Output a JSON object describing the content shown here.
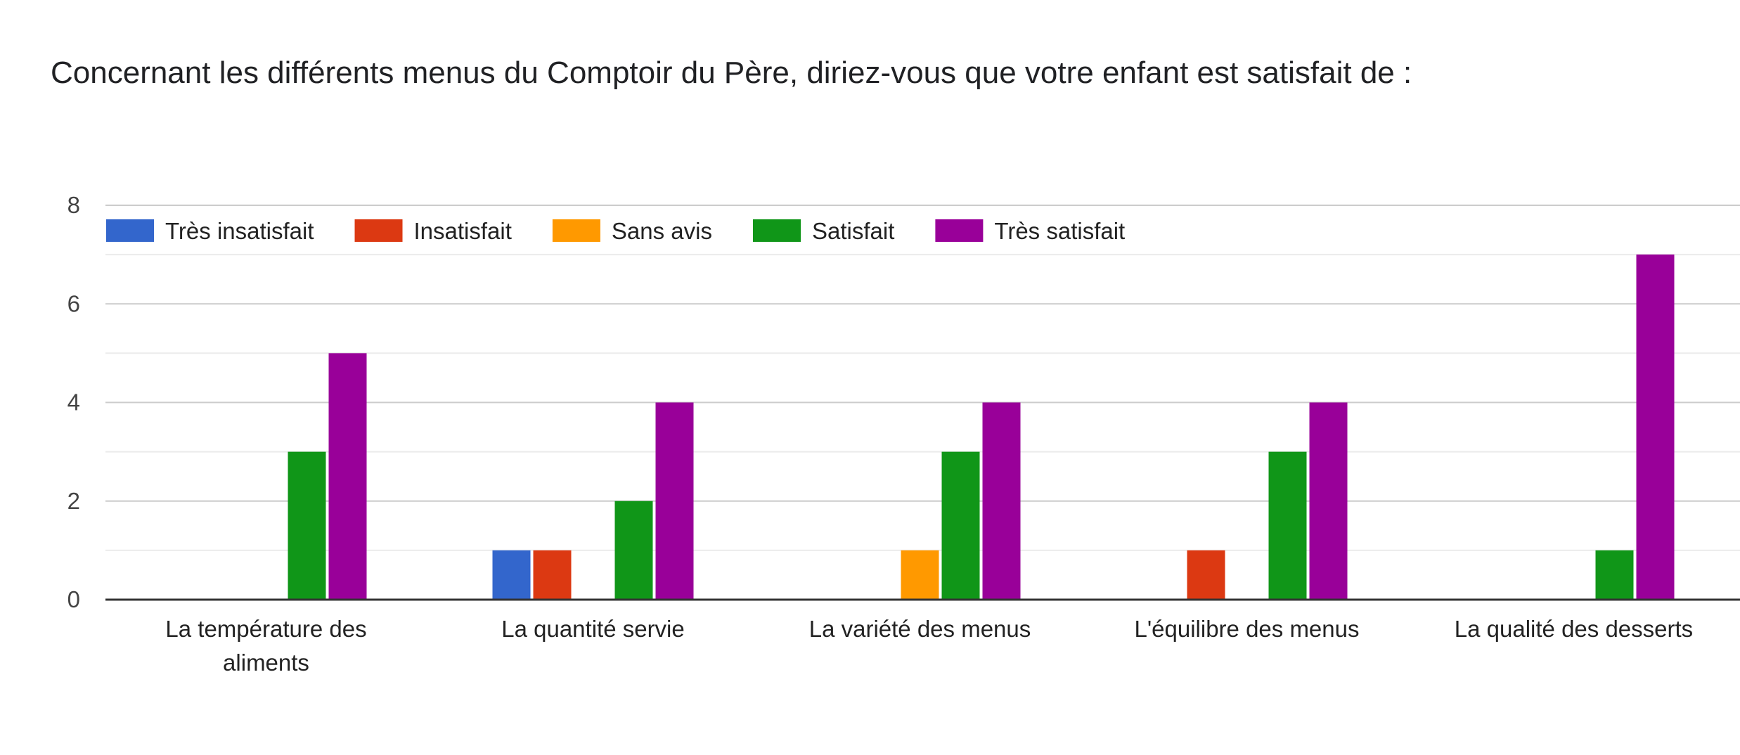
{
  "chart_data": {
    "type": "bar",
    "title": "Concernant les différents menus du Comptoir du Père, diriez-vous que votre enfant est satisfait de :",
    "categories": [
      [
        "La température des",
        "aliments"
      ],
      [
        "La quantité servie"
      ],
      [
        "La variété des menus"
      ],
      [
        "L'équilibre des menus"
      ],
      [
        "La qualité des desserts"
      ]
    ],
    "series": [
      {
        "name": "Très insatisfait",
        "color": "#3366cc",
        "values": [
          0,
          1,
          0,
          0,
          0
        ]
      },
      {
        "name": "Insatisfait",
        "color": "#dc3912",
        "values": [
          0,
          1,
          0,
          1,
          0
        ]
      },
      {
        "name": "Sans avis",
        "color": "#ff9900",
        "values": [
          0,
          0,
          1,
          0,
          0
        ]
      },
      {
        "name": "Satisfait",
        "color": "#109618",
        "values": [
          3,
          2,
          3,
          3,
          1
        ]
      },
      {
        "name": "Très satisfait",
        "color": "#990099",
        "values": [
          5,
          4,
          4,
          4,
          7
        ]
      }
    ],
    "ylim": [
      0,
      8
    ],
    "yticks": [
      0,
      2,
      4,
      6,
      8
    ],
    "grid": true,
    "legend_position": "top-left"
  }
}
